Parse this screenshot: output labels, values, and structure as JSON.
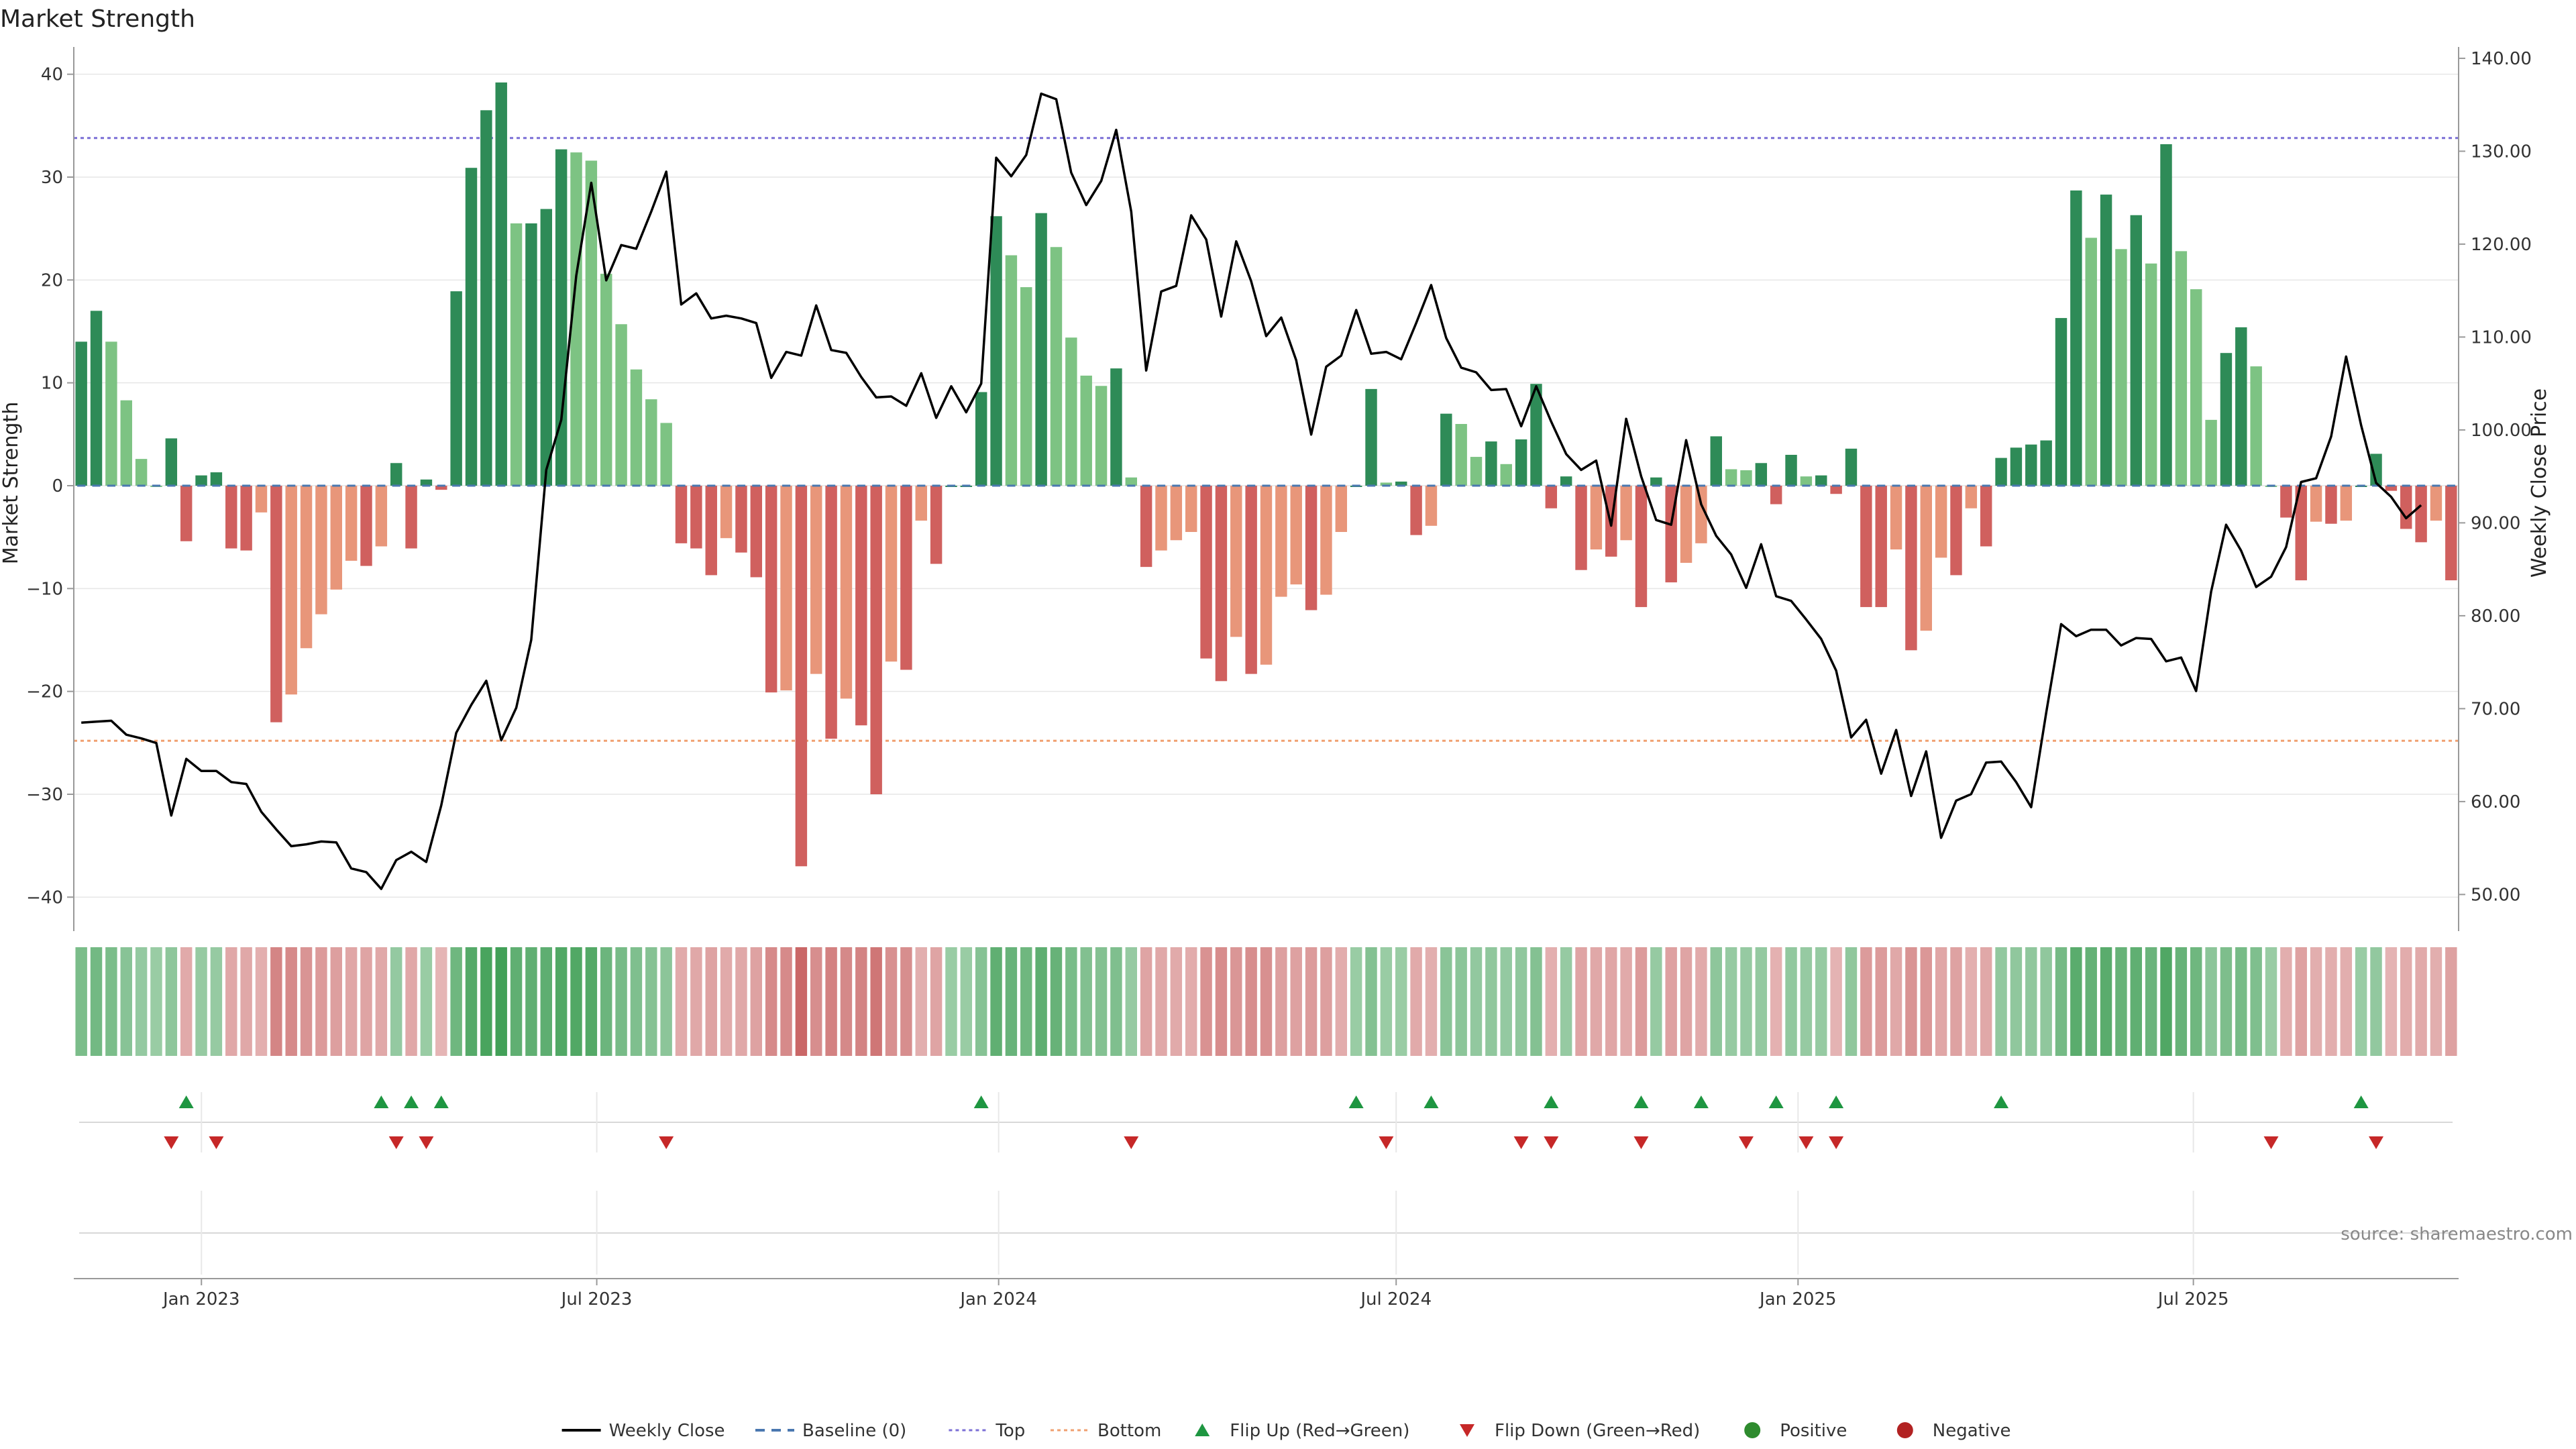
{
  "chart_data": {
    "type": "bar",
    "title": "Market Strength",
    "ylabel": "Market Strength",
    "y2label": "Weekly Close Price",
    "source": "source: sharemaestro.com",
    "ylim": [
      -42,
      42
    ],
    "y2lim": [
      47.5,
      140.5
    ],
    "yticks": [
      "40",
      "30",
      "20",
      "10",
      "0",
      "−10",
      "−20",
      "−30",
      "−40"
    ],
    "y2ticks": [
      "140.00",
      "130.00",
      "120.00",
      "110.00",
      "100.00",
      "90.00",
      "80.00",
      "70.00",
      "60.00",
      "50.00"
    ],
    "top_line": 33.8,
    "bottom_line": -24.8,
    "x_start": "2022-11-07",
    "x_end": "2025-10-27",
    "xticks": [
      {
        "date": "2023-01-01",
        "label": "Jan 2023"
      },
      {
        "date": "2023-07-01",
        "label": "Jul 2023"
      },
      {
        "date": "2024-01-01",
        "label": "Jan 2024"
      },
      {
        "date": "2024-07-01",
        "label": "Jul 2024"
      },
      {
        "date": "2025-01-01",
        "label": "Jan 2025"
      },
      {
        "date": "2025-07-01",
        "label": "Jul 2025"
      }
    ],
    "strength": [
      14,
      17,
      14,
      8.3,
      2.6,
      0,
      4.6,
      -5.4,
      1,
      1.3,
      -6.1,
      -6.3,
      -2.6,
      -23,
      -20.3,
      -15.8,
      -12.5,
      -10.1,
      -7.3,
      -7.8,
      -5.9,
      2.2,
      -6.1,
      0.6,
      -0.4,
      18.9,
      30.9,
      36.5,
      39.2,
      25.5,
      25.5,
      26.9,
      32.7,
      32.4,
      31.6,
      20.6,
      15.7,
      11.3,
      8.4,
      6.1,
      -5.6,
      -6.1,
      -8.7,
      -5.1,
      -6.5,
      -8.9,
      -20.1,
      -19.9,
      -37,
      -18.3,
      -24.6,
      -20.7,
      -23.3,
      -30,
      -17.1,
      -17.9,
      -3.4,
      -7.6,
      0,
      0,
      9.1,
      26.2,
      22.4,
      19.3,
      26.5,
      23.2,
      14.4,
      10.7,
      9.7,
      11.4,
      0.8,
      -7.9,
      -6.3,
      -5.3,
      -4.5,
      -16.8,
      -19,
      -14.7,
      -18.3,
      -17.4,
      -10.8,
      -9.6,
      -12.1,
      -10.6,
      -4.5,
      0,
      9.4,
      0.3,
      0.4,
      -4.8,
      -3.9,
      7,
      6,
      2.8,
      4.3,
      2.1,
      4.5,
      9.9,
      -2.2,
      0.9,
      -8.2,
      -6.2,
      -6.9,
      -5.3,
      -11.8,
      0.8,
      -9.4,
      -7.5,
      -5.6,
      4.8,
      1.6,
      1.5,
      2.2,
      -1.8,
      3,
      0.9,
      1,
      -0.8,
      3.6,
      -11.8,
      -11.8,
      -6.2,
      -16,
      -14.1,
      -7,
      -8.7,
      -2.2,
      -5.9,
      2.7,
      3.7,
      4,
      4.4,
      16.3,
      28.7,
      24.1,
      28.3,
      23,
      26.3,
      21.6,
      33.2,
      22.8,
      19.1,
      6.4,
      12.9,
      15.4,
      11.6,
      0,
      -3.1,
      -9.2,
      -3.5,
      -3.7,
      -3.4,
      0,
      3.1,
      -0.5,
      -4.2,
      -5.5,
      -3.4,
      -9.2
    ],
    "price": [
      68.5,
      68.6,
      68.7,
      67.2,
      66.8,
      66.3,
      58.5,
      64.6,
      63.3,
      63.3,
      62.1,
      61.9,
      58.9,
      57,
      55.2,
      55.4,
      55.7,
      55.6,
      52.8,
      52.4,
      50.6,
      53.7,
      54.6,
      53.5,
      59.6,
      67.4,
      70.4,
      73,
      66.6,
      70.1,
      77.4,
      95.7,
      101.1,
      116.6,
      126.6,
      116.1,
      119.9,
      119.5,
      123.5,
      127.8,
      113.5,
      114.7,
      112,
      112.3,
      112,
      111.5,
      105.6,
      108.4,
      108,
      113.4,
      108.6,
      108.3,
      105.7,
      103.5,
      103.6,
      102.6,
      106.1,
      101.3,
      104.7,
      101.9,
      105,
      129.3,
      127.3,
      129.6,
      136.2,
      135.6,
      127.7,
      124.2,
      126.8,
      132.3,
      123.5,
      106.4,
      114.9,
      115.5,
      123.1,
      120.5,
      112.2,
      120.3,
      116,
      110.1,
      112.1,
      107.5,
      99.5,
      106.8,
      108,
      112.9,
      108.2,
      108.4,
      107.6,
      111.5,
      115.6,
      109.9,
      106.7,
      106.2,
      104.3,
      104.4,
      100.4,
      104.7,
      100.9,
      97.4,
      95.7,
      96.7,
      89.7,
      101.2,
      95,
      90.3,
      89.8,
      98.9,
      92,
      88.6,
      86.6,
      83,
      87.7,
      82.1,
      81.6,
      79.6,
      77.5,
      74.1,
      66.9,
      68.8,
      63,
      67.7,
      60.6,
      65.4,
      56.1,
      60.1,
      60.8,
      64.2,
      64.3,
      62.1,
      59.4,
      69.5,
      79.1,
      77.8,
      78.5,
      78.5,
      76.8,
      77.6,
      77.5,
      75.1,
      75.5,
      71.9,
      82.6,
      89.8,
      87,
      83.1,
      84.2,
      87.4,
      94.4,
      94.8,
      99.3,
      107.9,
      100.5,
      94.3,
      92.8,
      90.5,
      91.9
    ]
  },
  "flips": {
    "up": [
      7,
      20,
      22,
      24,
      60,
      85,
      90,
      98,
      104,
      108,
      113,
      117,
      128,
      152
    ],
    "down": [
      6,
      9,
      21,
      23,
      39,
      70,
      87,
      96,
      98,
      104,
      111,
      115,
      117,
      146,
      153
    ]
  },
  "colors": {
    "strong_pos": "#2e8b57",
    "weak_pos": "#7dc383",
    "weak_neg": "#e8967a",
    "strong_neg": "#d0605e",
    "price_line": "#000000",
    "top_line": "#7b6fd6",
    "bottom_line": "#f0a070",
    "baseline": "#4a78b0",
    "flip_up": "#1e9641",
    "flip_down": "#c62828"
  },
  "legend": [
    {
      "label": "Weekly Close",
      "kind": "solid",
      "color": "#000000"
    },
    {
      "label": "Baseline (0)",
      "kind": "dash",
      "color": "#4a78b0"
    },
    {
      "label": "Top",
      "kind": "dot",
      "color": "#7b6fd6"
    },
    {
      "label": "Bottom",
      "kind": "dot",
      "color": "#f0a070"
    },
    {
      "label": "Flip Up (Red→Green)",
      "kind": "up",
      "color": "#1e9641"
    },
    {
      "label": "Flip Down (Green→Red)",
      "kind": "down",
      "color": "#c62828"
    },
    {
      "label": "Positive",
      "kind": "circle",
      "color": "#2e8b2e"
    },
    {
      "label": "Negative",
      "kind": "circle",
      "color": "#b22222"
    }
  ]
}
